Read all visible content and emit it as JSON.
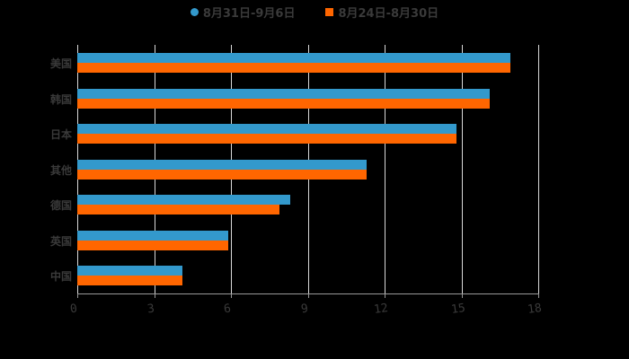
{
  "legend": [
    {
      "label": "8月31日-9月6日",
      "color": "#3399cc",
      "marker": "circle"
    },
    {
      "label": "8月24日-8月30日",
      "color": "#ff6600",
      "marker": "square"
    }
  ],
  "chart_data": {
    "type": "bar",
    "orientation": "horizontal",
    "title": "",
    "xlabel": "",
    "ylabel": "",
    "categories": [
      "美国",
      "韩国",
      "日本",
      "其他",
      "德国",
      "英国",
      "中国"
    ],
    "series": [
      {
        "name": "8月31日-9月6日",
        "color": "#3399cc",
        "values": [
          16.9,
          16.1,
          14.8,
          11.3,
          8.3,
          5.9,
          4.1
        ]
      },
      {
        "name": "8月24日-8月30日",
        "color": "#ff6600",
        "values": [
          16.9,
          16.1,
          14.8,
          11.3,
          7.9,
          5.9,
          4.1
        ]
      }
    ],
    "xlim": [
      0,
      18
    ],
    "xticks": [
      0,
      3,
      6,
      9,
      12,
      15,
      18
    ],
    "grid": "vertical",
    "legend_position": "top"
  }
}
